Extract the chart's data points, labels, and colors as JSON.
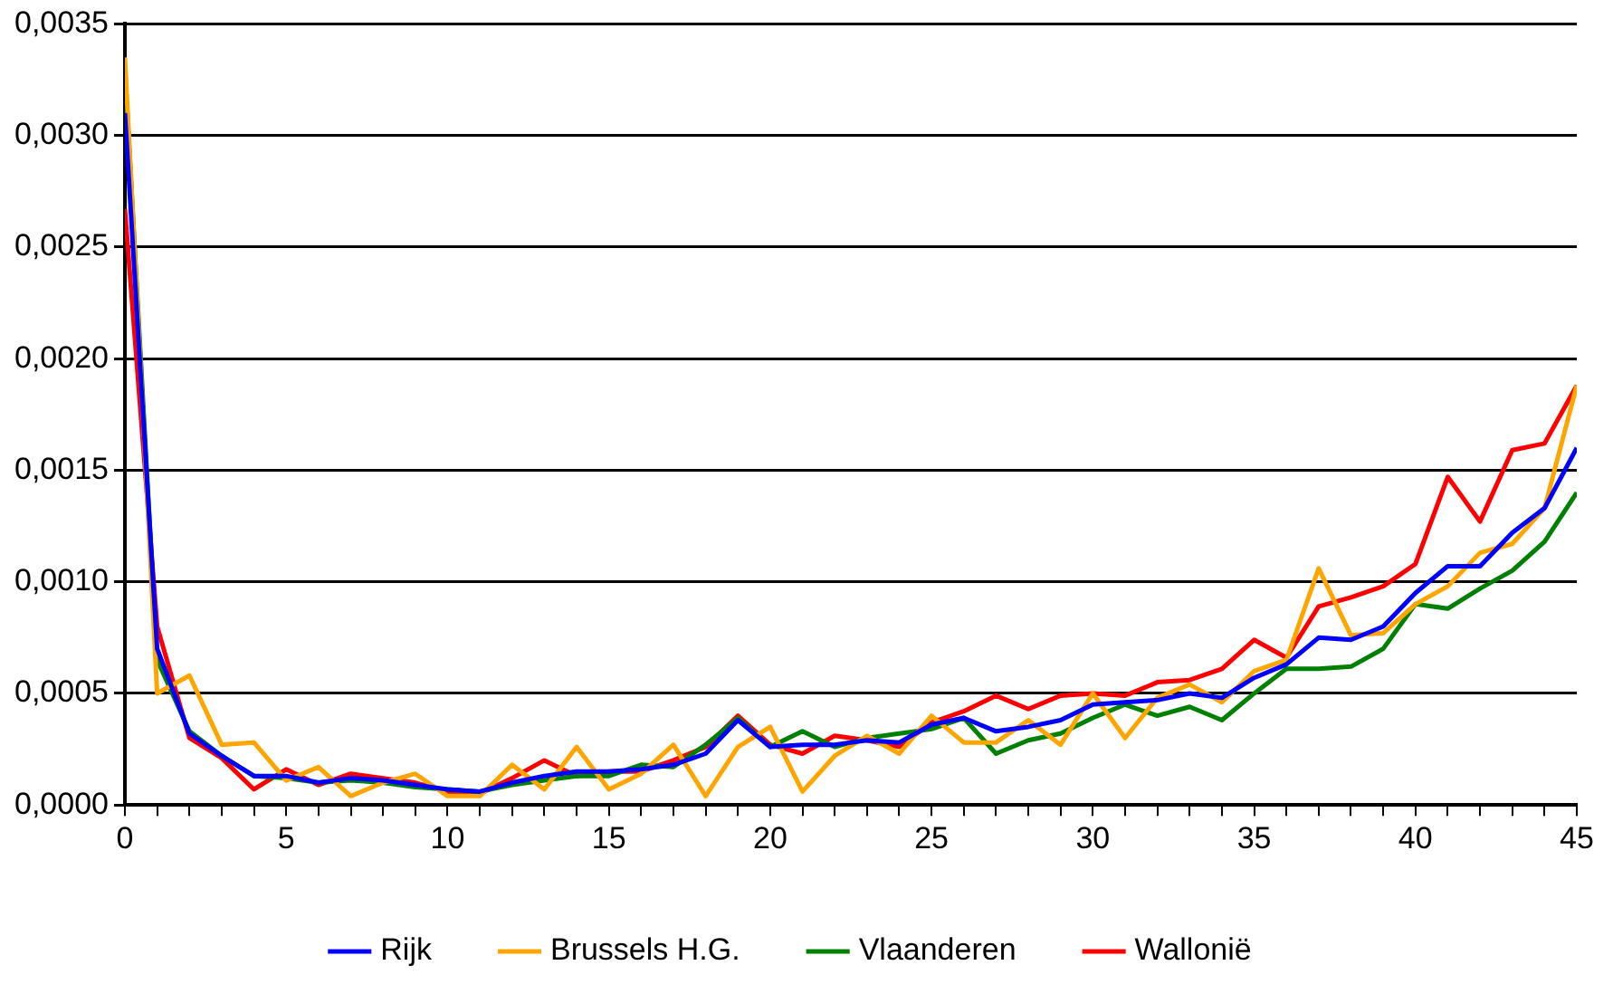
{
  "chart_data": {
    "type": "line",
    "x": [
      0,
      1,
      2,
      3,
      4,
      5,
      6,
      7,
      8,
      9,
      10,
      11,
      12,
      13,
      14,
      15,
      16,
      17,
      18,
      19,
      20,
      21,
      22,
      23,
      24,
      25,
      26,
      27,
      28,
      29,
      30,
      31,
      32,
      33,
      34,
      35,
      36,
      37,
      38,
      39,
      40,
      41,
      42,
      43,
      44,
      45
    ],
    "series": [
      {
        "name": "Rijk",
        "color": "#0000ff",
        "values": [
          0.0031,
          0.0007,
          0.00032,
          0.00022,
          0.00013,
          0.00013,
          0.0001,
          0.00012,
          0.00011,
          9e-05,
          7e-05,
          6e-05,
          0.0001,
          0.00013,
          0.00015,
          0.00015,
          0.00016,
          0.00018,
          0.00023,
          0.00038,
          0.00026,
          0.00027,
          0.00027,
          0.00029,
          0.00028,
          0.00036,
          0.00039,
          0.00033,
          0.00035,
          0.00038,
          0.00045,
          0.00046,
          0.00047,
          0.0005,
          0.00048,
          0.00057,
          0.00063,
          0.00075,
          0.00074,
          0.0008,
          0.00095,
          0.00107,
          0.00107,
          0.00122,
          0.00133,
          0.0016
        ]
      },
      {
        "name": "Brussels H.G.",
        "color": "#ffa500",
        "values": [
          0.00335,
          0.0005,
          0.00058,
          0.00027,
          0.00028,
          0.00011,
          0.00017,
          4e-05,
          0.0001,
          0.00014,
          4e-05,
          4e-05,
          0.00018,
          7e-05,
          0.00026,
          7e-05,
          0.00014,
          0.00027,
          4e-05,
          0.00026,
          0.00035,
          6e-05,
          0.00022,
          0.00031,
          0.00023,
          0.0004,
          0.00028,
          0.00028,
          0.00038,
          0.00027,
          0.0005,
          0.0003,
          0.00048,
          0.00054,
          0.00046,
          0.0006,
          0.00065,
          0.00106,
          0.00076,
          0.00077,
          0.0009,
          0.00098,
          0.00113,
          0.00117,
          0.00133,
          0.00188
        ]
      },
      {
        "name": "Vlaanderen",
        "color": "#008000",
        "values": [
          0.0033,
          0.00065,
          0.00033,
          0.00022,
          0.00013,
          0.00012,
          0.0001,
          0.00011,
          0.0001,
          8e-05,
          7e-05,
          6e-05,
          9e-05,
          0.00011,
          0.00013,
          0.00013,
          0.00018,
          0.00017,
          0.00027,
          0.00039,
          0.00026,
          0.00033,
          0.00026,
          0.0003,
          0.00032,
          0.00034,
          0.00039,
          0.00023,
          0.00029,
          0.00032,
          0.00039,
          0.00045,
          0.0004,
          0.00044,
          0.00038,
          0.0005,
          0.00061,
          0.00061,
          0.00062,
          0.0007,
          0.0009,
          0.00088,
          0.00097,
          0.00105,
          0.00118,
          0.0014
        ]
      },
      {
        "name": "Wallonië",
        "color": "#ff0000",
        "values": [
          0.00267,
          0.0008,
          0.0003,
          0.00021,
          7e-05,
          0.00016,
          9e-05,
          0.00014,
          0.00012,
          0.0001,
          6e-05,
          5e-05,
          0.00012,
          0.0002,
          0.00013,
          0.00015,
          0.00015,
          0.0002,
          0.00026,
          0.0004,
          0.00027,
          0.00023,
          0.00031,
          0.00029,
          0.00026,
          0.00037,
          0.00042,
          0.00049,
          0.00043,
          0.00049,
          0.0005,
          0.00049,
          0.00055,
          0.00056,
          0.00061,
          0.00074,
          0.00066,
          0.00089,
          0.00093,
          0.00098,
          0.00108,
          0.00147,
          0.00127,
          0.00159,
          0.00162,
          0.00188
        ]
      }
    ],
    "xlim": [
      0,
      45
    ],
    "xticks": [
      0,
      {
        "value": 1,
        "label": null
      },
      {
        "value": 2,
        "label": null
      },
      {
        "value": 3,
        "label": null
      },
      {
        "value": 4,
        "label": null
      },
      5,
      {
        "value": 6,
        "label": null
      },
      {
        "value": 7,
        "label": null
      },
      {
        "value": 8,
        "label": null
      },
      {
        "value": 9,
        "label": null
      },
      10,
      {
        "value": 11,
        "label": null
      },
      {
        "value": 12,
        "label": null
      },
      {
        "value": 13,
        "label": null
      },
      {
        "value": 14,
        "label": null
      },
      15,
      {
        "value": 16,
        "label": null
      },
      {
        "value": 17,
        "label": null
      },
      {
        "value": 18,
        "label": null
      },
      {
        "value": 19,
        "label": null
      },
      20,
      {
        "value": 21,
        "label": null
      },
      {
        "value": 22,
        "label": null
      },
      {
        "value": 23,
        "label": null
      },
      {
        "value": 24,
        "label": null
      },
      25,
      {
        "value": 26,
        "label": null
      },
      {
        "value": 27,
        "label": null
      },
      {
        "value": 28,
        "label": null
      },
      {
        "value": 29,
        "label": null
      },
      30,
      {
        "value": 31,
        "label": null
      },
      {
        "value": 32,
        "label": null
      },
      {
        "value": 33,
        "label": null
      },
      {
        "value": 34,
        "label": null
      },
      35,
      {
        "value": 36,
        "label": null
      },
      {
        "value": 37,
        "label": null
      },
      {
        "value": 38,
        "label": null
      },
      {
        "value": 39,
        "label": null
      },
      40,
      {
        "value": 41,
        "label": null
      },
      {
        "value": 42,
        "label": null
      },
      {
        "value": 43,
        "label": null
      },
      {
        "value": 44,
        "label": null
      },
      45
    ],
    "ylim": [
      0,
      0.0035
    ],
    "yticks": [
      {
        "value": 0,
        "label": "0,0000"
      },
      {
        "value": 0.0005,
        "label": "0,0005"
      },
      {
        "value": 0.001,
        "label": "0,0010"
      },
      {
        "value": 0.0015,
        "label": "0,0015"
      },
      {
        "value": 0.002,
        "label": "0,0020"
      },
      {
        "value": 0.0025,
        "label": "0,0025"
      },
      {
        "value": 0.003,
        "label": "0,0030"
      },
      {
        "value": 0.0035,
        "label": "0,0035"
      }
    ],
    "grid": "y",
    "legend": "bottom",
    "marker": "none",
    "line_style": "solid"
  }
}
